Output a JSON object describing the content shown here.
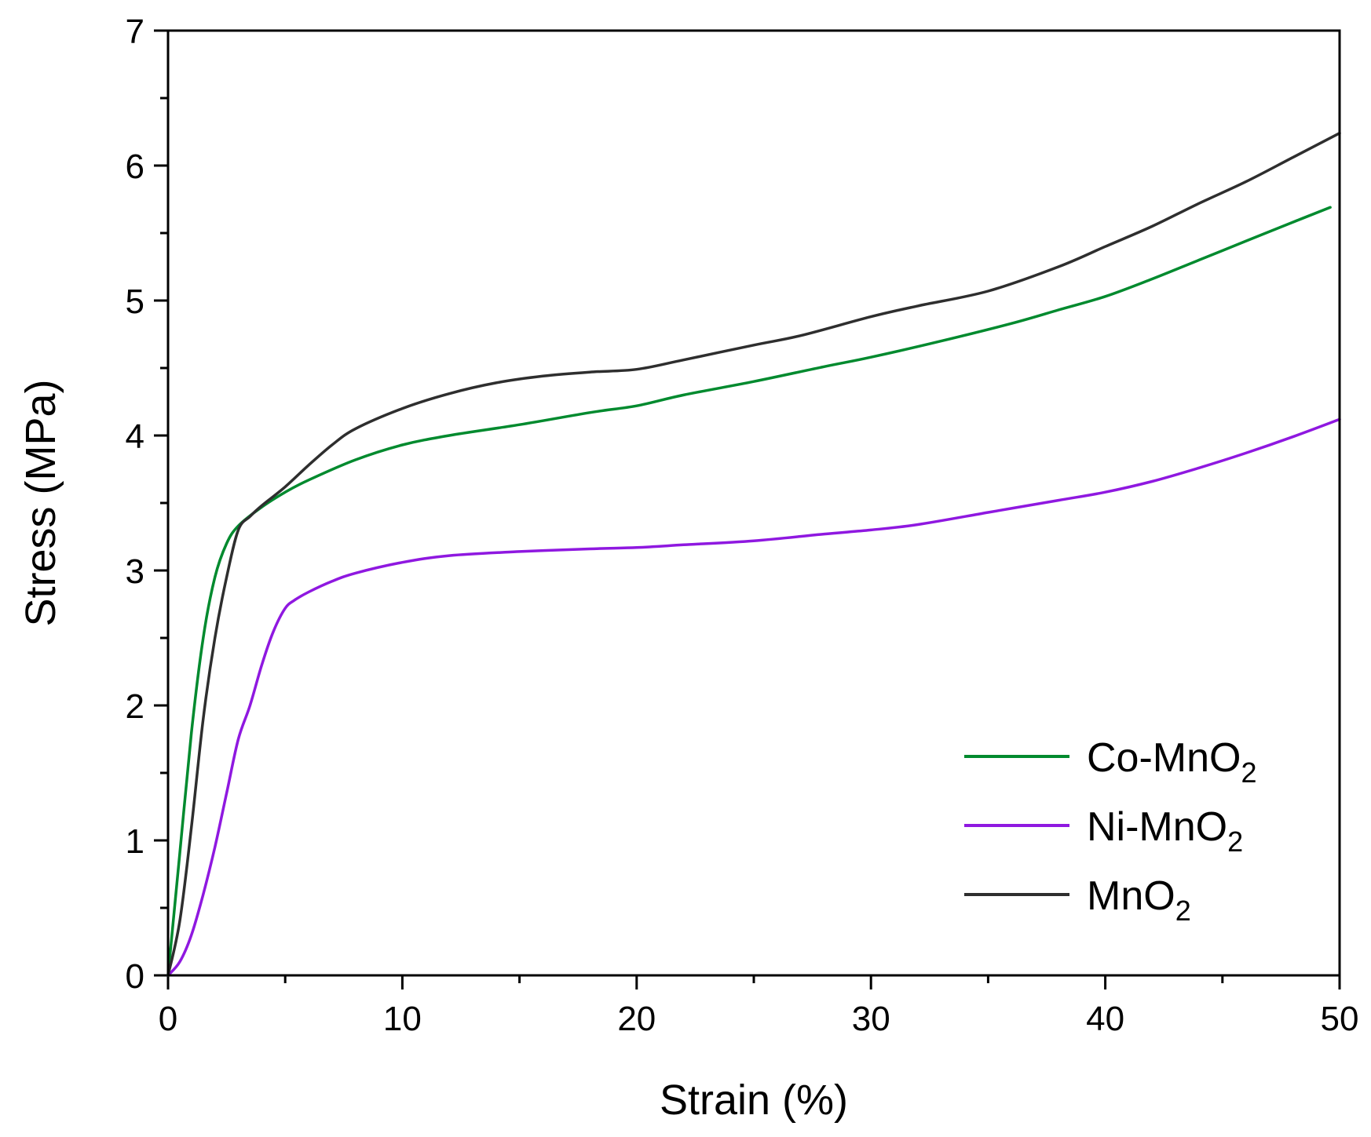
{
  "chart_data": {
    "type": "line",
    "title": "",
    "xlabel": "Strain (%)",
    "ylabel": "Stress (MPa)",
    "xlim": [
      0,
      50
    ],
    "ylim": [
      0,
      7
    ],
    "xticks": [
      0,
      10,
      20,
      30,
      40,
      50
    ],
    "yticks": [
      0,
      1,
      2,
      3,
      4,
      5,
      6,
      7
    ],
    "x_minor_step": 5,
    "y_minor_step": 0.5,
    "grid": false,
    "legend_position": "bottom-right",
    "series": [
      {
        "name": "Co-MnO",
        "subscript": "2",
        "color": "#008a2e",
        "x": [
          0,
          0.5,
          1,
          1.5,
          2,
          2.5,
          3,
          4,
          5,
          6,
          8,
          10,
          12,
          15,
          18,
          20,
          22,
          25,
          28,
          30,
          33,
          36,
          38,
          40,
          42,
          44,
          46,
          48,
          49.6
        ],
        "y": [
          0,
          0.9,
          1.8,
          2.5,
          2.95,
          3.2,
          3.33,
          3.47,
          3.58,
          3.67,
          3.82,
          3.93,
          4.0,
          4.08,
          4.17,
          4.22,
          4.3,
          4.4,
          4.51,
          4.58,
          4.7,
          4.83,
          4.93,
          5.03,
          5.16,
          5.3,
          5.44,
          5.58,
          5.69
        ]
      },
      {
        "name": "Ni-MnO",
        "subscript": "2",
        "color": "#8f18e0",
        "x": [
          0,
          0.5,
          1,
          1.5,
          2,
          2.5,
          3,
          3.5,
          4,
          4.5,
          5,
          5.4,
          6,
          7,
          8,
          10,
          12,
          15,
          18,
          20,
          22,
          25,
          28,
          30,
          32,
          35,
          38,
          40,
          42,
          44,
          46,
          48,
          50
        ],
        "y": [
          0,
          0.1,
          0.3,
          0.6,
          0.95,
          1.35,
          1.75,
          2.0,
          2.3,
          2.55,
          2.72,
          2.78,
          2.84,
          2.92,
          2.98,
          3.06,
          3.11,
          3.14,
          3.16,
          3.17,
          3.19,
          3.22,
          3.27,
          3.3,
          3.34,
          3.43,
          3.52,
          3.58,
          3.66,
          3.76,
          3.87,
          3.99,
          4.12
        ]
      },
      {
        "name": "MnO",
        "subscript": "2",
        "color": "#2e2e2e",
        "x": [
          0,
          0.5,
          1,
          1.5,
          2,
          2.5,
          3,
          3.5,
          4,
          5,
          6,
          7,
          8,
          10,
          12,
          14,
          16,
          18,
          20,
          22,
          25,
          27,
          30,
          32,
          35,
          38,
          40,
          42,
          44,
          46,
          48,
          50
        ],
        "y": [
          0,
          0.4,
          1.1,
          1.9,
          2.5,
          2.95,
          3.3,
          3.4,
          3.48,
          3.62,
          3.78,
          3.93,
          4.05,
          4.2,
          4.31,
          4.39,
          4.44,
          4.47,
          4.49,
          4.56,
          4.67,
          4.74,
          4.88,
          4.96,
          5.07,
          5.25,
          5.4,
          5.55,
          5.72,
          5.88,
          6.06,
          6.24
        ]
      }
    ]
  }
}
